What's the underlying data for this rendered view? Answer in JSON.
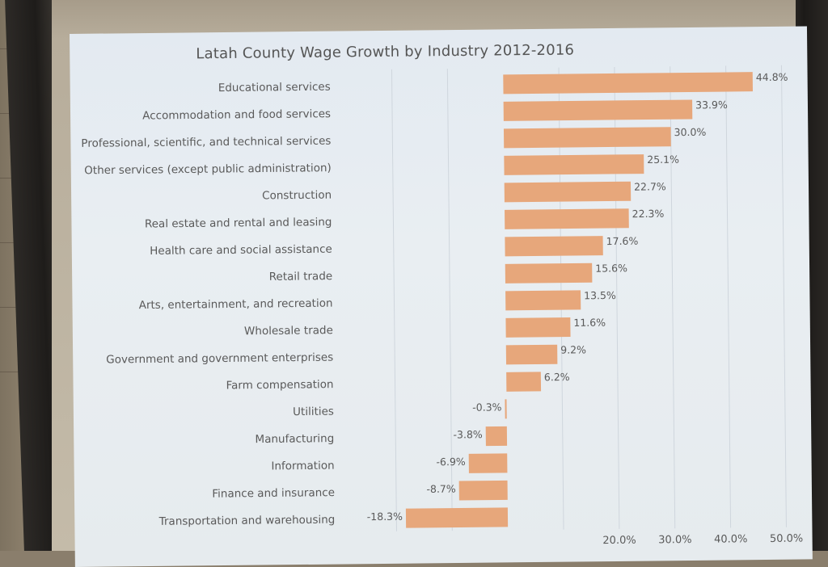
{
  "chart_data": {
    "type": "bar",
    "orientation": "horizontal",
    "title": "Latah County Wage Growth by Industry 2012-2016",
    "xlabel": "",
    "ylabel": "",
    "xlim": [
      -20,
      50
    ],
    "grid": true,
    "bar_color": "#e7a77b",
    "categories": [
      "Educational services",
      "Accommodation and food services",
      "Professional, scientific, and technical services",
      "Other services (except public administration)",
      "Construction",
      "Real estate and rental and leasing",
      "Health care and social assistance",
      "Retail trade",
      "Arts, entertainment, and recreation",
      "Wholesale trade",
      "Government and government enterprises",
      "Farm compensation",
      "Utilities",
      "Manufacturing",
      "Information",
      "Finance and insurance",
      "Transportation and warehousing"
    ],
    "values": [
      44.8,
      33.9,
      30.0,
      25.1,
      22.7,
      22.3,
      17.6,
      15.6,
      13.5,
      11.6,
      9.2,
      6.2,
      -0.3,
      -3.8,
      -6.9,
      -8.7,
      -18.3
    ],
    "data_labels": [
      "44.8%",
      "33.9%",
      "30.0%",
      "25.1%",
      "22.7%",
      "22.3%",
      "17.6%",
      "15.6%",
      "13.5%",
      "11.6%",
      "9.2%",
      "6.2%",
      "-0.3%",
      "-3.8%",
      "-6.9%",
      "-8.7%",
      "-18.3%"
    ],
    "x_ticks": [
      {
        "value": 20,
        "label": "20.0%"
      },
      {
        "value": 30,
        "label": "30.0%"
      },
      {
        "value": 40,
        "label": "40.0%"
      },
      {
        "value": 50,
        "label": "50.0%"
      }
    ]
  }
}
